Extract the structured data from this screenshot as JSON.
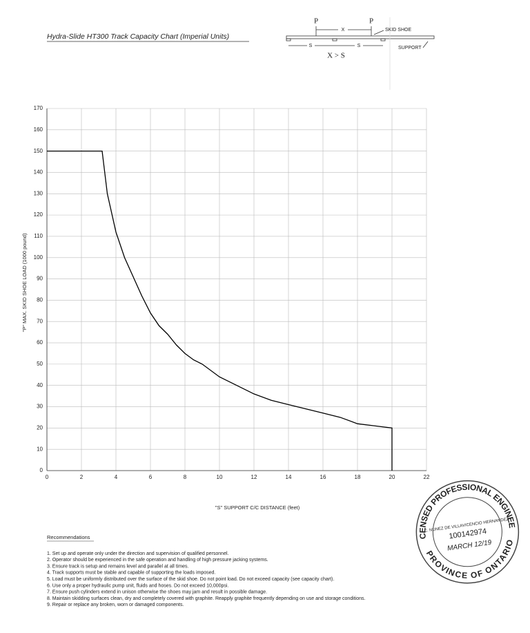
{
  "chart_data": {
    "type": "line",
    "title": "Hydra-Slide HT300 Track Capacity Chart (Imperial Units)",
    "x_label": "\"S\" SUPPORT C/C DISTANCE (feet)",
    "y_label": "\"P\" MAX. SKID SHOE LOAD (1000 pound)",
    "x": [
      0,
      3.2,
      3.5,
      4,
      4.5,
      5,
      5.5,
      6,
      6.5,
      7,
      7.5,
      8,
      8.5,
      9,
      10,
      11,
      12,
      13,
      14,
      15,
      16,
      17,
      18,
      19,
      20,
      20
    ],
    "values": [
      150,
      150,
      130,
      112,
      100,
      91,
      82,
      74,
      68,
      64,
      59,
      55,
      52,
      50,
      44,
      40,
      36,
      33,
      31,
      29,
      27,
      25,
      22,
      21,
      20,
      0
    ],
    "color": "#000000",
    "xlim": [
      0,
      22
    ],
    "xticks": [
      0,
      2,
      4,
      6,
      8,
      10,
      12,
      14,
      16,
      18,
      20,
      22
    ],
    "ylim": [
      0,
      170
    ],
    "yticks": [
      0,
      10,
      20,
      30,
      40,
      50,
      60,
      70,
      80,
      90,
      100,
      110,
      120,
      130,
      140,
      150,
      160,
      170
    ],
    "grid": true
  },
  "diagram": {
    "p_left": "P",
    "x": "X",
    "p_right": "P",
    "skid_shoe": "SKID SHOE",
    "s_left": "S",
    "s_right": "S",
    "support": "SUPPORT",
    "relation": "X > S"
  },
  "recommendations": {
    "heading": "Recommendations",
    "items": [
      "1. Set up and operate only under the direction and supervision of qualified personnel.",
      "2. Operator should be experienced in the safe operation and handling of high pressure jacking systems.",
      "3. Ensure track is setup and remains level and parallel at all times.",
      "4. Track supports must be stable and capable of supporting the loads imposed.",
      "5. Load must be uniformly distributed over the surface of the skid shoe. Do not point load. Do not exceed capacity (see capacity chart).",
      "6. Use only a proper hydraulic pump unit, fluids and hoses. Do not exceed 10,000psi.",
      "7. Ensure push cylinders extend in unison otherwise the shoes may jam and result in possible damage.",
      "8. Maintain skidding surfaces clean, dry and completely covered with graphite. Reapply graphite frequently depending on use and storage conditions.",
      "9. Repair or replace any broken, worn or damaged components."
    ]
  },
  "stamp": {
    "top": "LICENSED PROFESSIONAL ENGINEER",
    "name": "C. NUNEZ DE VILLAVICENCIO HERNANDEZ",
    "number": "100142974",
    "date": "MARCH 12/19",
    "bottom": "PROVINCE OF ONTARIO"
  }
}
